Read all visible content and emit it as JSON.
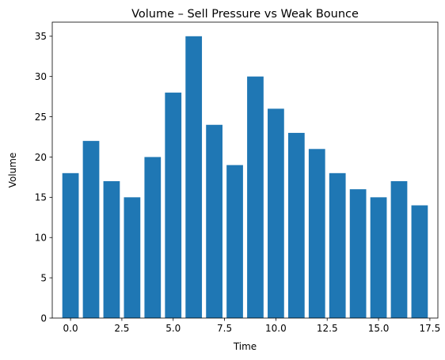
{
  "chart_data": {
    "type": "bar",
    "title": "Volume – Sell Pressure vs Weak Bounce",
    "xlabel": "Time",
    "ylabel": "Volume",
    "x": [
      0,
      1,
      2,
      3,
      4,
      5,
      6,
      7,
      8,
      9,
      10,
      11,
      12,
      13,
      14,
      15,
      16,
      17
    ],
    "values": [
      18,
      22,
      17,
      15,
      20,
      28,
      35,
      24,
      19,
      30,
      26,
      23,
      21,
      18,
      16,
      15,
      17,
      14
    ],
    "xlim": [
      -0.89,
      17.89
    ],
    "ylim": [
      0,
      36.75
    ],
    "xticks": [
      0.0,
      2.5,
      5.0,
      7.5,
      10.0,
      12.5,
      15.0,
      17.5
    ],
    "xtick_labels": [
      "0.0",
      "2.5",
      "5.0",
      "7.5",
      "10.0",
      "12.5",
      "15.0",
      "17.5"
    ],
    "yticks": [
      0,
      5,
      10,
      15,
      20,
      25,
      30,
      35
    ],
    "ytick_labels": [
      "0",
      "5",
      "10",
      "15",
      "20",
      "25",
      "30",
      "35"
    ],
    "bar_color": "#1f77b4",
    "grid": false,
    "legend": "none"
  }
}
